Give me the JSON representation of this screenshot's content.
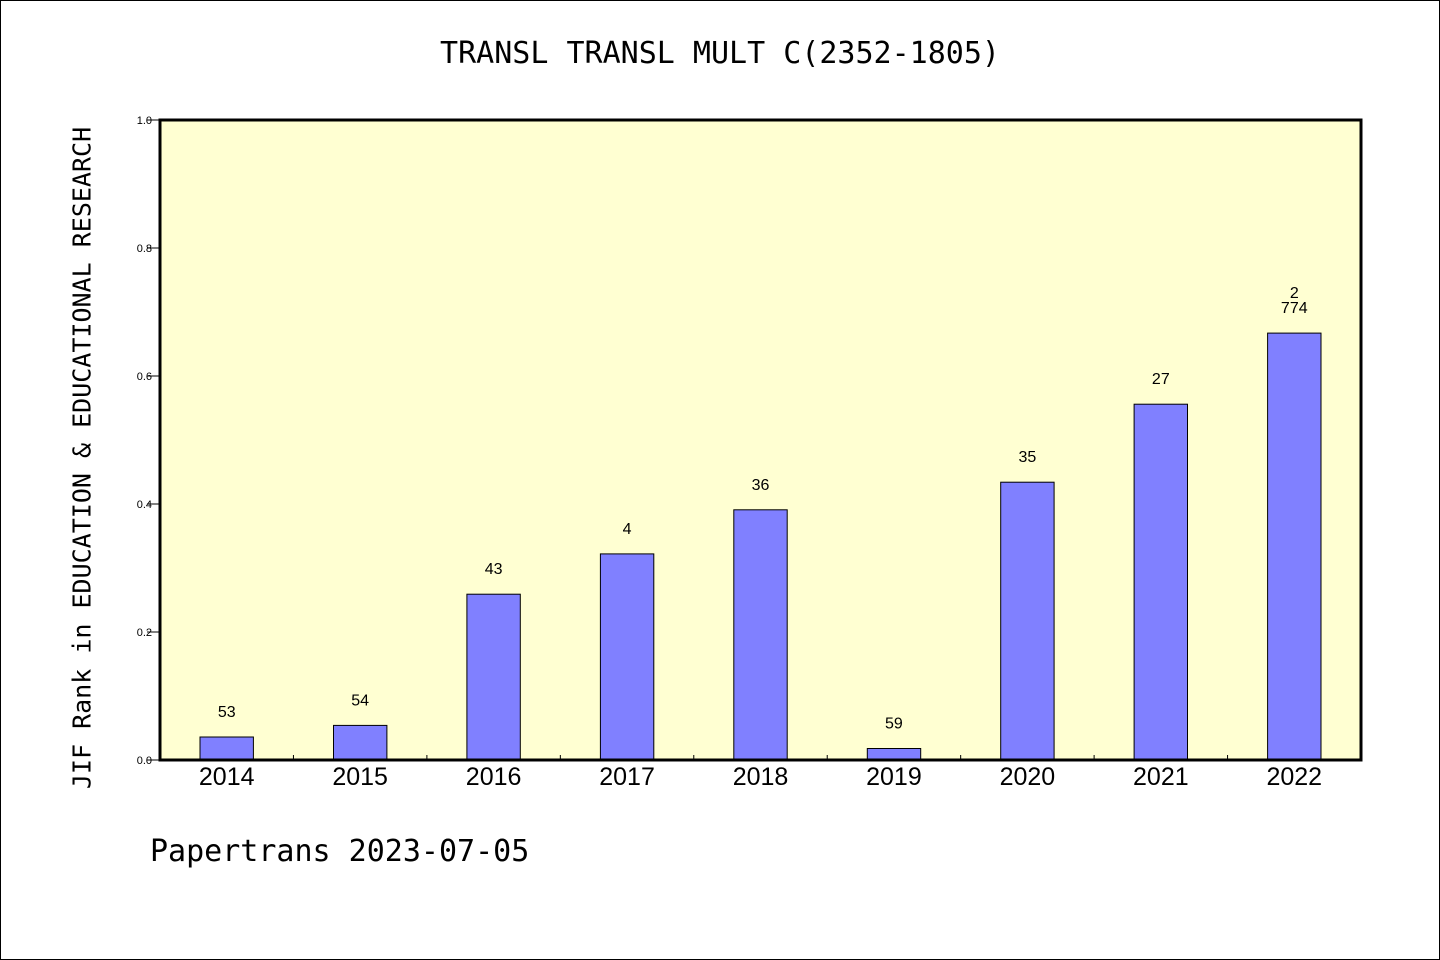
{
  "chart_data": {
    "type": "bar",
    "title": "TRANSL TRANSL MULT C(2352-1805)",
    "ylabel": "JIF Rank in EDUCATION & EDUCATIONAL RESEARCH",
    "xlabel": "",
    "ylim": [
      0.0,
      1.0
    ],
    "yticks": [
      "0.0",
      "0.2",
      "0.4",
      "0.6",
      "0.8",
      "1.0"
    ],
    "categories": [
      "2014",
      "2015",
      "2016",
      "2017",
      "2018",
      "2019",
      "2020",
      "2021",
      "2022"
    ],
    "values": [
      0.036,
      0.054,
      0.259,
      0.322,
      0.391,
      0.018,
      0.434,
      0.556,
      0.667
    ],
    "data_labels": [
      "53",
      "54",
      "43",
      "4",
      "36",
      "59",
      "35",
      "27",
      "2\n774"
    ],
    "grid": false,
    "legend": "none",
    "colors": {
      "plot_background": "#ffffd2",
      "bar_fill": "#8080ff",
      "bar_stroke": "#000000",
      "axis": "#000000"
    }
  },
  "footer": {
    "credit": "Papertrans 2023-07-05"
  }
}
